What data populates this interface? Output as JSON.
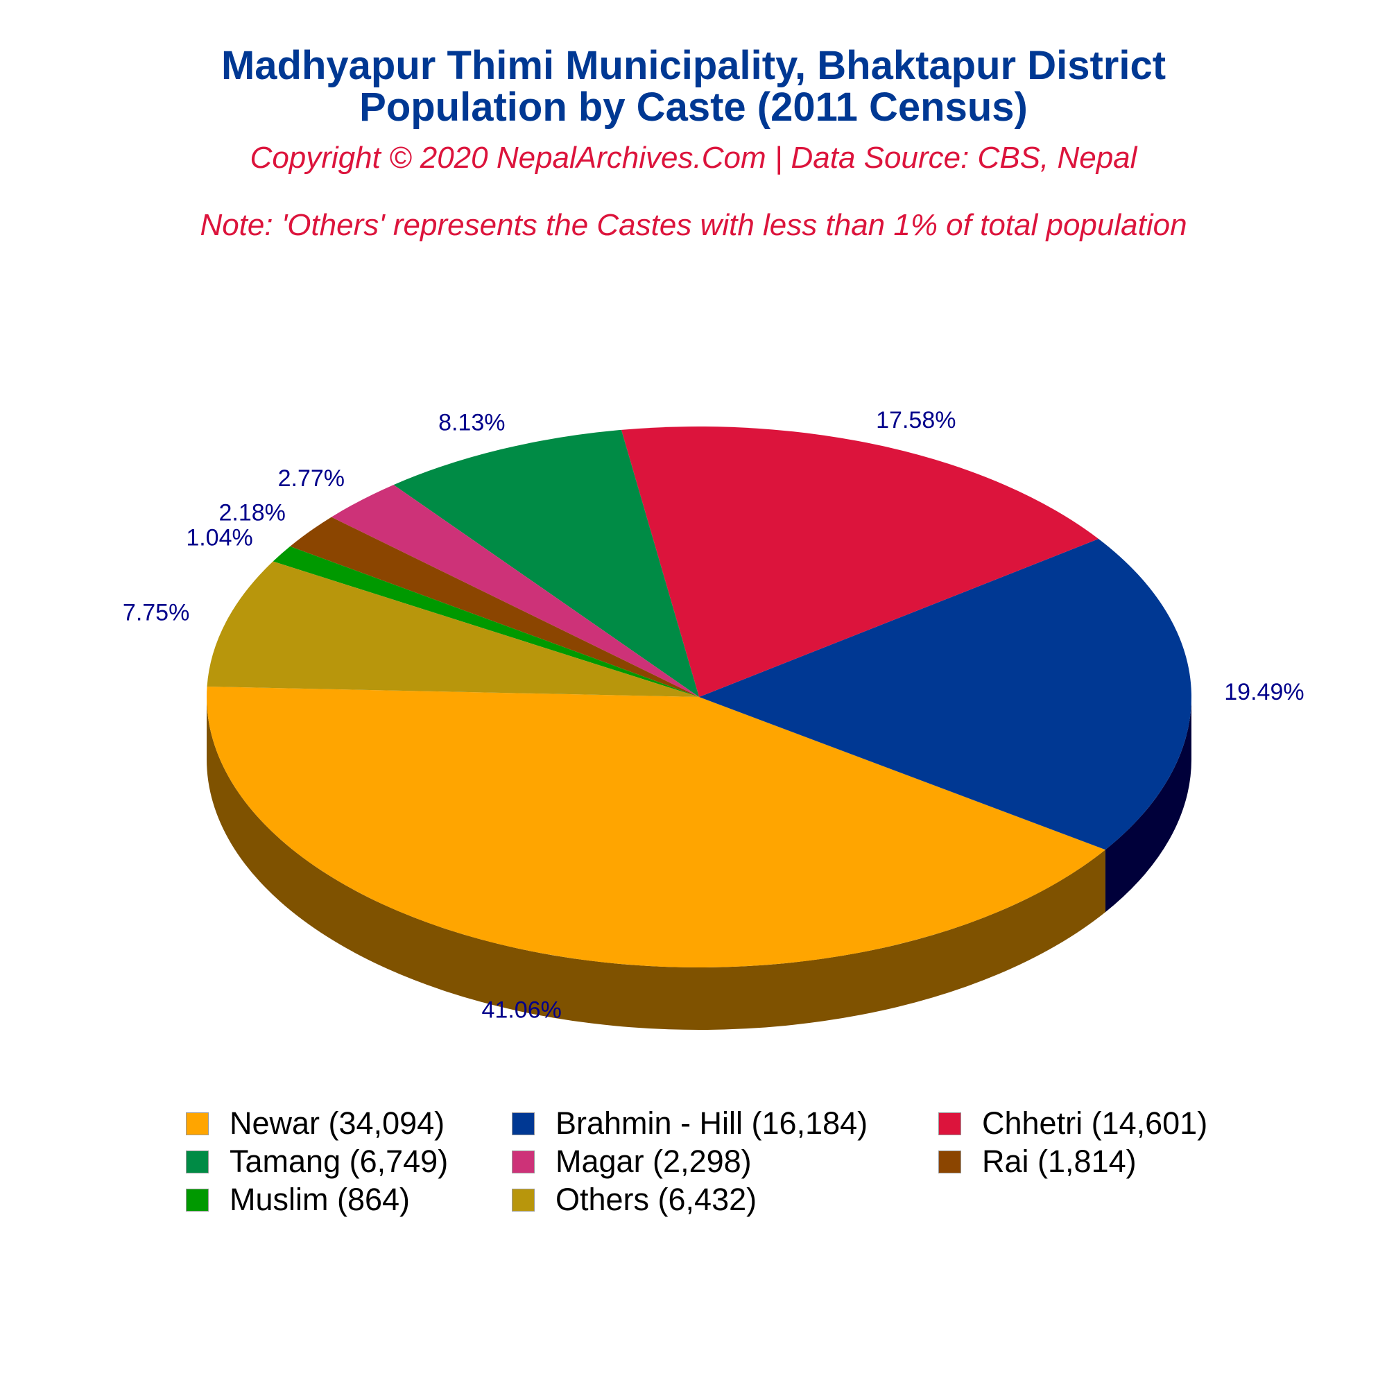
{
  "title_lines": [
    "Madhyapur Thimi Municipality, Bhaktapur District",
    "Population by Caste (2011 Census)"
  ],
  "copyright": "Copyright © 2020 NepalArchives.Com | Data Source: CBS, Nepal",
  "note": "Note: 'Others' represents the Castes with less than 1% of total population",
  "chart_data": {
    "type": "pie",
    "style": "3d",
    "legend_position": "bottom",
    "slices": [
      {
        "label": "Newar",
        "value": 34094,
        "percent_label": "41.06%",
        "legend": "Newar (34,094)",
        "color": "#FFA500",
        "side_color": "#7F5200"
      },
      {
        "label": "Brahmin - Hill",
        "value": 16184,
        "percent_label": "19.49%",
        "legend": "Brahmin - Hill (16,184)",
        "color": "#003893",
        "side_color": "#00003A"
      },
      {
        "label": "Chhetri",
        "value": 14601,
        "percent_label": "17.58%",
        "legend": "Chhetri (14,601)",
        "color": "#DC143C",
        "side_color": "#800000"
      },
      {
        "label": "Tamang",
        "value": 6749,
        "percent_label": "8.13%",
        "legend": "Tamang (6,749)",
        "color": "#008B45",
        "side_color": "#003300"
      },
      {
        "label": "Magar",
        "value": 2298,
        "percent_label": "2.77%",
        "legend": "Magar (2,298)",
        "color": "#CD3278",
        "side_color": "#6E0030"
      },
      {
        "label": "Rai",
        "value": 1814,
        "percent_label": "2.18%",
        "legend": "Rai (1,814)",
        "color": "#8B4500",
        "side_color": "#4A2000"
      },
      {
        "label": "Muslim",
        "value": 864,
        "percent_label": "1.04%",
        "legend": "Muslim (864)",
        "color": "#009900",
        "side_color": "#004400"
      },
      {
        "label": "Others",
        "value": 6432,
        "percent_label": "7.75%",
        "legend": "Others (6,432)",
        "color": "#B8960C",
        "side_color": "#5C4A00"
      }
    ]
  }
}
